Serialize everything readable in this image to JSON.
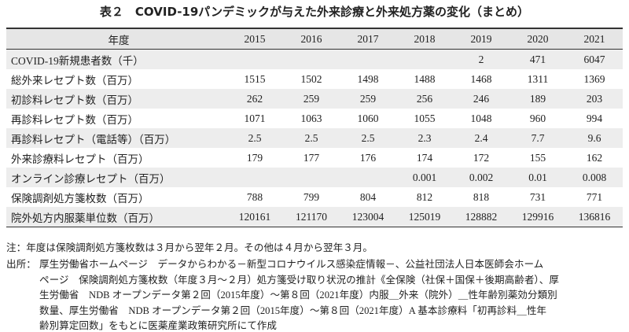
{
  "title": "表２　COVID-19パンデミックが与えた外来診療と外来処方薬の変化（まとめ）",
  "table": {
    "header": [
      "年度",
      "2015",
      "2016",
      "2017",
      "2018",
      "2019",
      "2020",
      "2021"
    ],
    "rows": [
      [
        "COVID-19新規患者数（千）",
        null,
        null,
        null,
        null,
        "2",
        "471",
        "6047"
      ],
      [
        "総外来レセプト数（百万）",
        "1515",
        "1502",
        "1498",
        "1488",
        "1468",
        "1311",
        "1369"
      ],
      [
        "初診料レセプト数（百万）",
        "262",
        "259",
        "259",
        "256",
        "246",
        "189",
        "203"
      ],
      [
        "再診料レセプト数（百万）",
        "1071",
        "1063",
        "1060",
        "1055",
        "1048",
        "960",
        "994"
      ],
      [
        "再診料レセプト（電話等）（百万）",
        "2.5",
        "2.5",
        "2.5",
        "2.3",
        "2.4",
        "7.7",
        "9.6"
      ],
      [
        "外来診療料レセプト（百万）",
        "179",
        "177",
        "176",
        "174",
        "172",
        "155",
        "162"
      ],
      [
        "オンライン診療レセプト（百万）",
        null,
        null,
        null,
        "0.001",
        "0.002",
        "0.01",
        "0.008"
      ],
      [
        "保険調剤処方箋枚数（百万）",
        "788",
        "799",
        "804",
        "812",
        "818",
        "731",
        "771"
      ],
      [
        "院外処方内服薬単位数（百万）",
        "120161",
        "121170",
        "123004",
        "125019",
        "128882",
        "129916",
        "136816"
      ]
    ]
  },
  "note": "注：年度は保険調剤処方箋枚数は３月から翌年２月。その他は４月から翌年３月。",
  "source": {
    "label": "出所：",
    "lines": [
      "厚生労働省ホームページ　データからわかる－新型コロナウイルス感染症情報－、公益社団法人日本医師会ホーム",
      "ページ　保険調剤処方箋枚数（年度３月～２月）処方箋受け取り状況の推計《全保険（社保＋国保＋後期高齢者）、厚",
      "生労働省　NDB オープンデータ第２回（2015年度）～第８回（2021年度）内服＿外来（院外）＿性年齢別薬効分類別",
      "数量、厚生労働省　NDB オープンデータ第２回（2015年度）～第８回（2021年度）A 基本診療料「初再診料＿性年",
      "齢別算定回数」をもとに医薬産業政策研究所にて作成"
    ]
  }
}
